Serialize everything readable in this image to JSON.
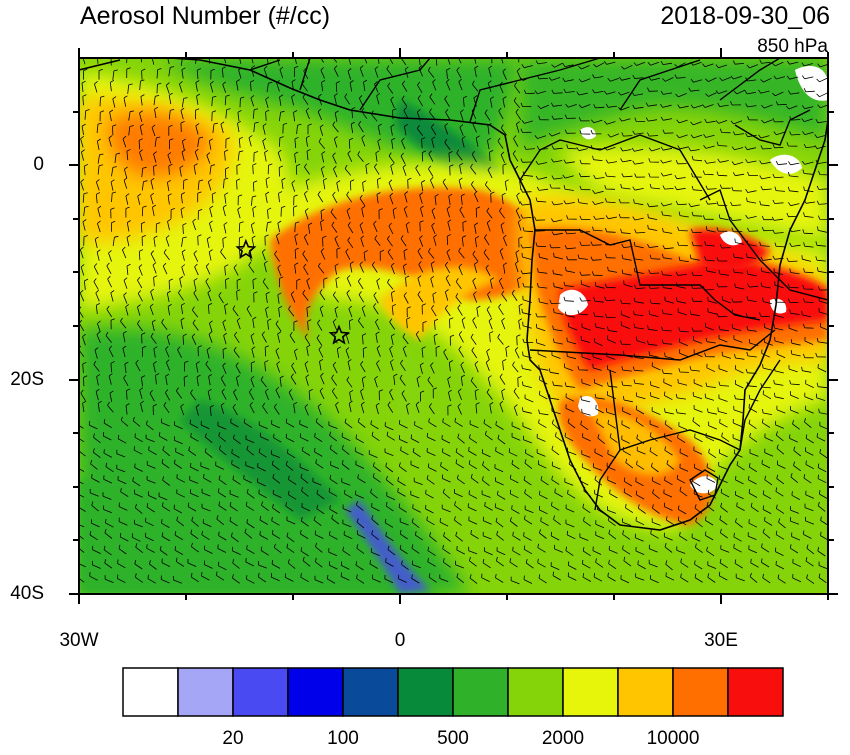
{
  "header": {
    "title": "Aerosol Number (#/cc)",
    "timestamp": "2018-09-30_06",
    "level": "850 hPa"
  },
  "map": {
    "region": "South Atlantic and southern Africa",
    "lon_range": [
      -30,
      40
    ],
    "lat_range": [
      -40,
      10
    ],
    "lat_tick_labels": [
      "0",
      "20S",
      "40S"
    ],
    "lon_tick_labels": [
      "30W",
      "0",
      "30E"
    ],
    "station_markers": [
      {
        "name": "star-1",
        "lon": -14.4,
        "lat": -7.9
      },
      {
        "name": "star-2",
        "lon": -5.7,
        "lat": -15.9
      }
    ]
  },
  "colorbar": {
    "colors": [
      "#ffffff",
      "#a6a6f7",
      "#4a4af2",
      "#0000ea",
      "#0a4a9a",
      "#078a3a",
      "#2fb22a",
      "#85d40a",
      "#e6f50a",
      "#ffc600",
      "#ff6f00",
      "#f90e0e"
    ],
    "tick_labels": [
      "20",
      "100",
      "500",
      "2000",
      "10000"
    ]
  }
}
